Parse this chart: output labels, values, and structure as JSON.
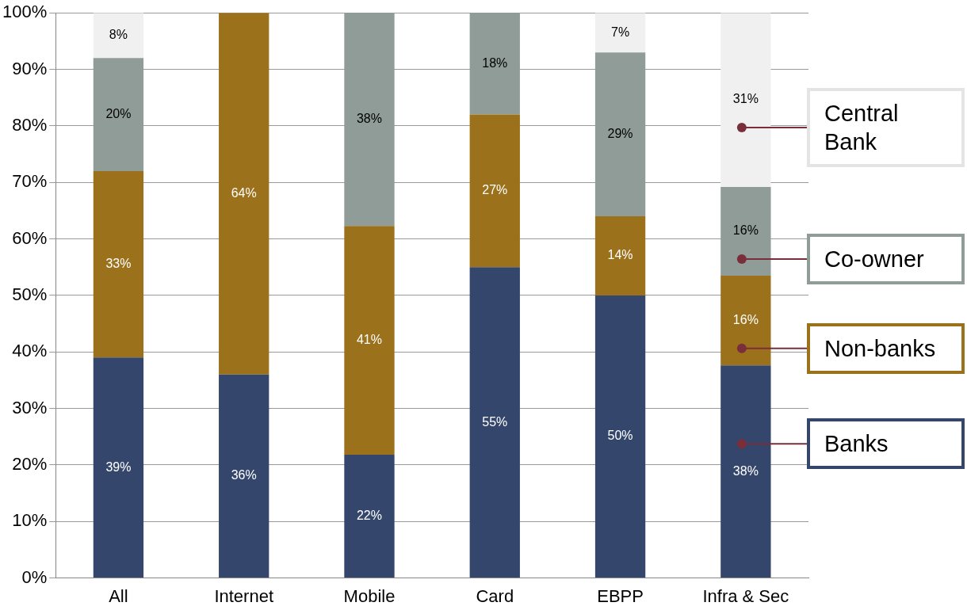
{
  "chart_data": {
    "type": "bar",
    "stacked": true,
    "categories": [
      "All",
      "Internet",
      "Mobile",
      "Card",
      "EBPP",
      "Infra & Sec"
    ],
    "series": [
      {
        "name": "Banks",
        "color": "#34466b",
        "values": [
          39,
          36,
          21.8,
          55,
          50,
          37.6
        ],
        "value_labels": [
          "39%",
          "36%",
          "22%",
          "55%",
          "50%",
          "38%"
        ]
      },
      {
        "name": "Non-banks",
        "color": "#9c711b",
        "values": [
          33,
          64,
          40.5,
          27,
          14,
          15.9
        ],
        "value_labels": [
          "33%",
          "64%",
          "41%",
          "27%",
          "14%",
          "16%"
        ]
      },
      {
        "name": "Co-owner",
        "color": "#8f9c97",
        "values": [
          20,
          null,
          37.7,
          18,
          29,
          15.7
        ],
        "value_labels": [
          "20%",
          null,
          "38%",
          "18%",
          "29%",
          "16%"
        ]
      },
      {
        "name": "Central Bank",
        "color": "#f0f0f0",
        "values": [
          8,
          null,
          null,
          null,
          7,
          30.8
        ],
        "value_labels": [
          "8%",
          null,
          null,
          null,
          "7%",
          "31%"
        ]
      }
    ],
    "ylim": [
      0,
      100
    ],
    "yticks": [
      {
        "value": 0,
        "label": "0%"
      },
      {
        "value": 10,
        "label": "10%"
      },
      {
        "value": 20,
        "label": "20%"
      },
      {
        "value": 30,
        "label": "30%"
      },
      {
        "value": 40,
        "label": "40%"
      },
      {
        "value": 50,
        "label": "50%"
      },
      {
        "value": 60,
        "label": "60%"
      },
      {
        "value": 70,
        "label": "70%"
      },
      {
        "value": 80,
        "label": "80%"
      },
      {
        "value": 90,
        "label": "90%"
      },
      {
        "value": 100,
        "label": "100%"
      }
    ],
    "grid": "y",
    "legend": "right"
  }
}
